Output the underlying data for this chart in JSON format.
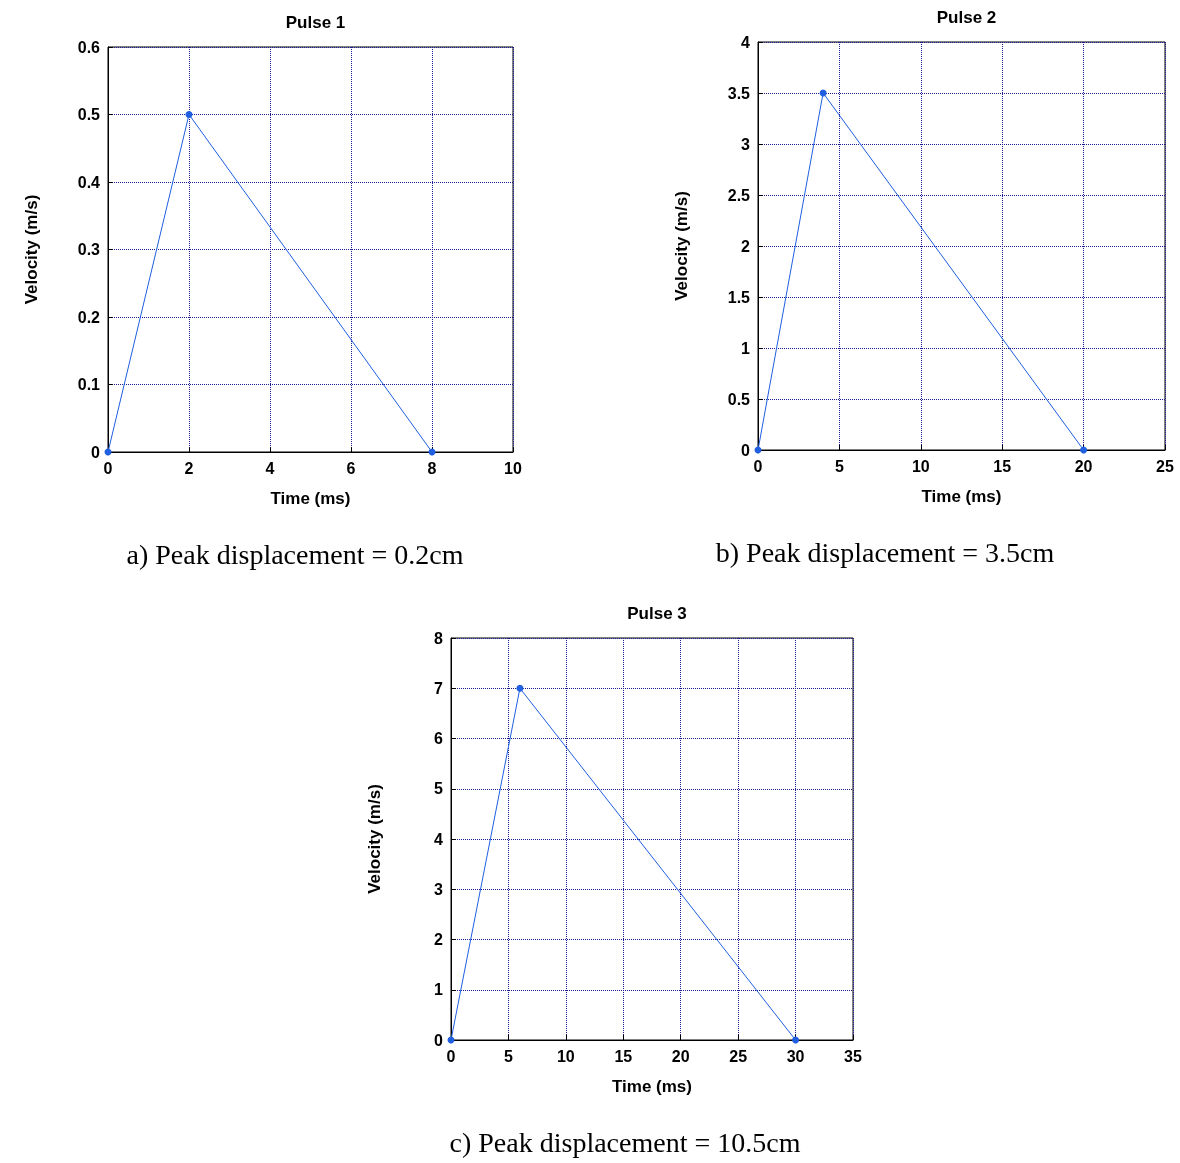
{
  "chart_data": [
    {
      "type": "line",
      "title": "Pulse 1",
      "xlabel": "Time (ms)",
      "ylabel": "Velocity (m/s)",
      "x": [
        0,
        2,
        8
      ],
      "values": [
        0,
        0.5,
        0
      ],
      "color": "#1f5fe0",
      "xlim": [
        0,
        10
      ],
      "xticks": [
        0,
        2,
        4,
        6,
        8,
        10
      ],
      "ylim": [
        0,
        0.6
      ],
      "yticks": [
        0,
        0.1,
        0.2,
        0.3,
        0.4,
        0.5,
        0.6
      ],
      "grid": true,
      "marker": "circle",
      "annotations": [
        "a) Peak displacement = 0.2cm"
      ]
    },
    {
      "type": "line",
      "title": "Pulse 2",
      "xlabel": "Time (ms)",
      "ylabel": "Velocity (m/s)",
      "x": [
        0,
        4,
        20
      ],
      "values": [
        0,
        3.5,
        0
      ],
      "color": "#1f5fe0",
      "xlim": [
        0,
        25
      ],
      "xticks": [
        0,
        5,
        10,
        15,
        20,
        25
      ],
      "ylim": [
        0,
        4
      ],
      "yticks": [
        0,
        0.5,
        1,
        1.5,
        2,
        2.5,
        3,
        3.5,
        4
      ],
      "grid": true,
      "marker": "circle",
      "annotations": [
        "b) Peak displacement = 3.5cm"
      ]
    },
    {
      "type": "line",
      "title": "Pulse 3",
      "xlabel": "Time (ms)",
      "ylabel": "Velocity (m/s)",
      "x": [
        0,
        6,
        30
      ],
      "values": [
        0,
        7,
        0
      ],
      "color": "#1f5fe0",
      "xlim": [
        0,
        35
      ],
      "xticks": [
        0,
        5,
        10,
        15,
        20,
        25,
        30,
        35
      ],
      "ylim": [
        0,
        8
      ],
      "yticks": [
        0,
        1,
        2,
        3,
        4,
        5,
        6,
        7,
        8
      ],
      "grid": true,
      "marker": "circle",
      "annotations": [
        "c) Peak displacement = 10.5cm"
      ]
    }
  ]
}
